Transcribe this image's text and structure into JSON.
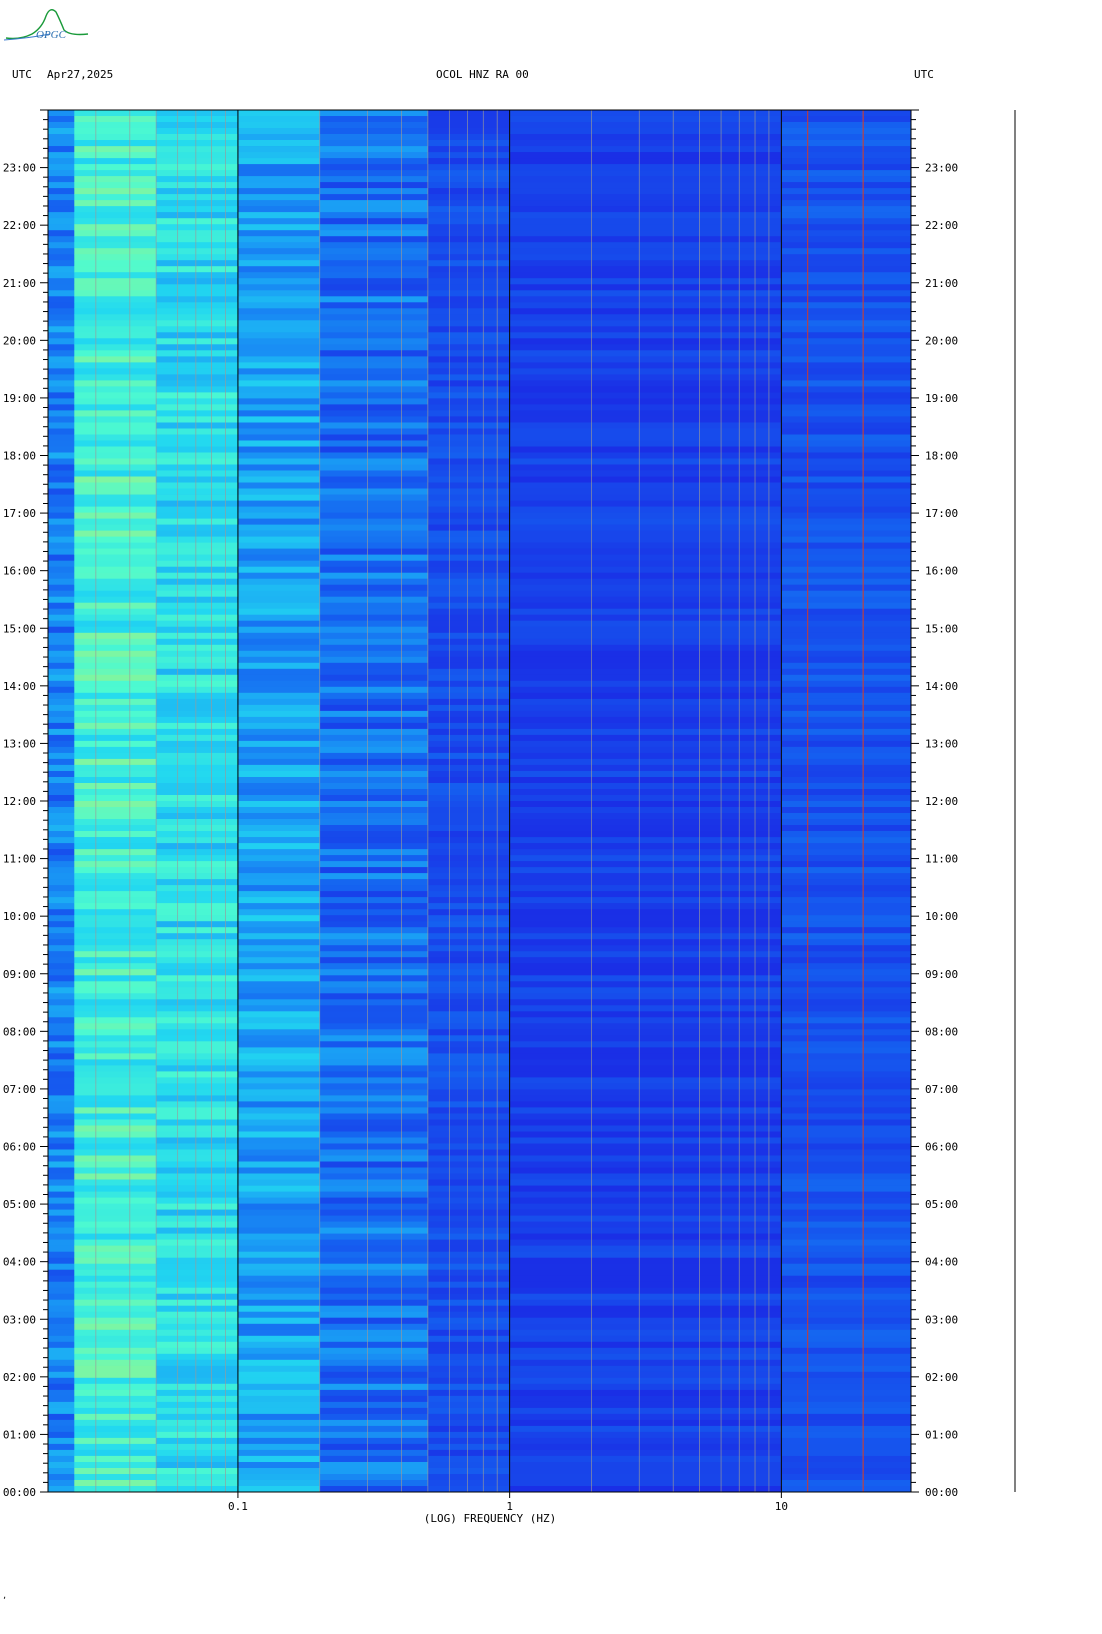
{
  "header": {
    "left_timezone": "UTC",
    "date": "Apr27,2025",
    "station": "OCOL HNZ RA 00",
    "right_timezone": "UTC"
  },
  "logo": {
    "text": "OPGC",
    "color": "#1a9a3a"
  },
  "footer_glyph": "ʼ",
  "chart_data": {
    "type": "heatmap",
    "title": "OCOL HNZ RA 00",
    "xlabel": "(LOG) FREQUENCY (HZ)",
    "ylabel": "",
    "x_scale": "log",
    "xlim": [
      0.02,
      30
    ],
    "x_tick_labels": [
      {
        "value": 0.1,
        "label": "0.1"
      },
      {
        "value": 1,
        "label": "1"
      },
      {
        "value": 10,
        "label": "10"
      }
    ],
    "ylim_hours": [
      0,
      24
    ],
    "y_tick_labels": [
      {
        "hour": 0,
        "label": "00:00"
      },
      {
        "hour": 1,
        "label": "01:00"
      },
      {
        "hour": 2,
        "label": "02:00"
      },
      {
        "hour": 3,
        "label": "03:00"
      },
      {
        "hour": 4,
        "label": "04:00"
      },
      {
        "hour": 5,
        "label": "05:00"
      },
      {
        "hour": 6,
        "label": "06:00"
      },
      {
        "hour": 7,
        "label": "07:00"
      },
      {
        "hour": 8,
        "label": "08:00"
      },
      {
        "hour": 9,
        "label": "09:00"
      },
      {
        "hour": 10,
        "label": "10:00"
      },
      {
        "hour": 11,
        "label": "11:00"
      },
      {
        "hour": 12,
        "label": "12:00"
      },
      {
        "hour": 13,
        "label": "13:00"
      },
      {
        "hour": 14,
        "label": "14:00"
      },
      {
        "hour": 15,
        "label": "15:00"
      },
      {
        "hour": 16,
        "label": "16:00"
      },
      {
        "hour": 17,
        "label": "17:00"
      },
      {
        "hour": 18,
        "label": "18:00"
      },
      {
        "hour": 19,
        "label": "19:00"
      },
      {
        "hour": 20,
        "label": "20:00"
      },
      {
        "hour": 21,
        "label": "21:00"
      },
      {
        "hour": 22,
        "label": "22:00"
      },
      {
        "hour": 23,
        "label": "23:00"
      }
    ],
    "y_axis_direction": "time increases upward (00:00 at bottom)",
    "colormap": [
      "#1a2fe6",
      "#1560f0",
      "#1aa0f5",
      "#22d8f0",
      "#4dfad0",
      "#a8f27a",
      "#e8e02a"
    ],
    "band_levels": [
      {
        "f_low": 0.02,
        "f_high": 0.025,
        "level": 0.25
      },
      {
        "f_low": 0.025,
        "f_high": 0.05,
        "level": 0.62
      },
      {
        "f_low": 0.05,
        "f_high": 0.1,
        "level": 0.52
      },
      {
        "f_low": 0.1,
        "f_high": 0.2,
        "level": 0.35
      },
      {
        "f_low": 0.2,
        "f_high": 0.5,
        "level": 0.2
      },
      {
        "f_low": 0.5,
        "f_high": 1.0,
        "level": 0.1
      },
      {
        "f_low": 1.0,
        "f_high": 10,
        "level": 0.05
      },
      {
        "f_low": 10,
        "f_high": 30,
        "level": 0.12
      }
    ],
    "gridlines_hz": [
      0.03,
      0.04,
      0.05,
      0.06,
      0.07,
      0.08,
      0.09,
      0.1,
      0.2,
      0.3,
      0.4,
      0.5,
      0.6,
      0.7,
      0.8,
      0.9,
      1,
      2,
      3,
      4,
      5,
      6,
      7,
      8,
      9,
      10,
      20
    ],
    "decade_lines_hz": [
      0.1,
      1,
      10
    ],
    "red_lines_hz": [
      12.5,
      20
    ],
    "grid": true,
    "legend": "none"
  }
}
